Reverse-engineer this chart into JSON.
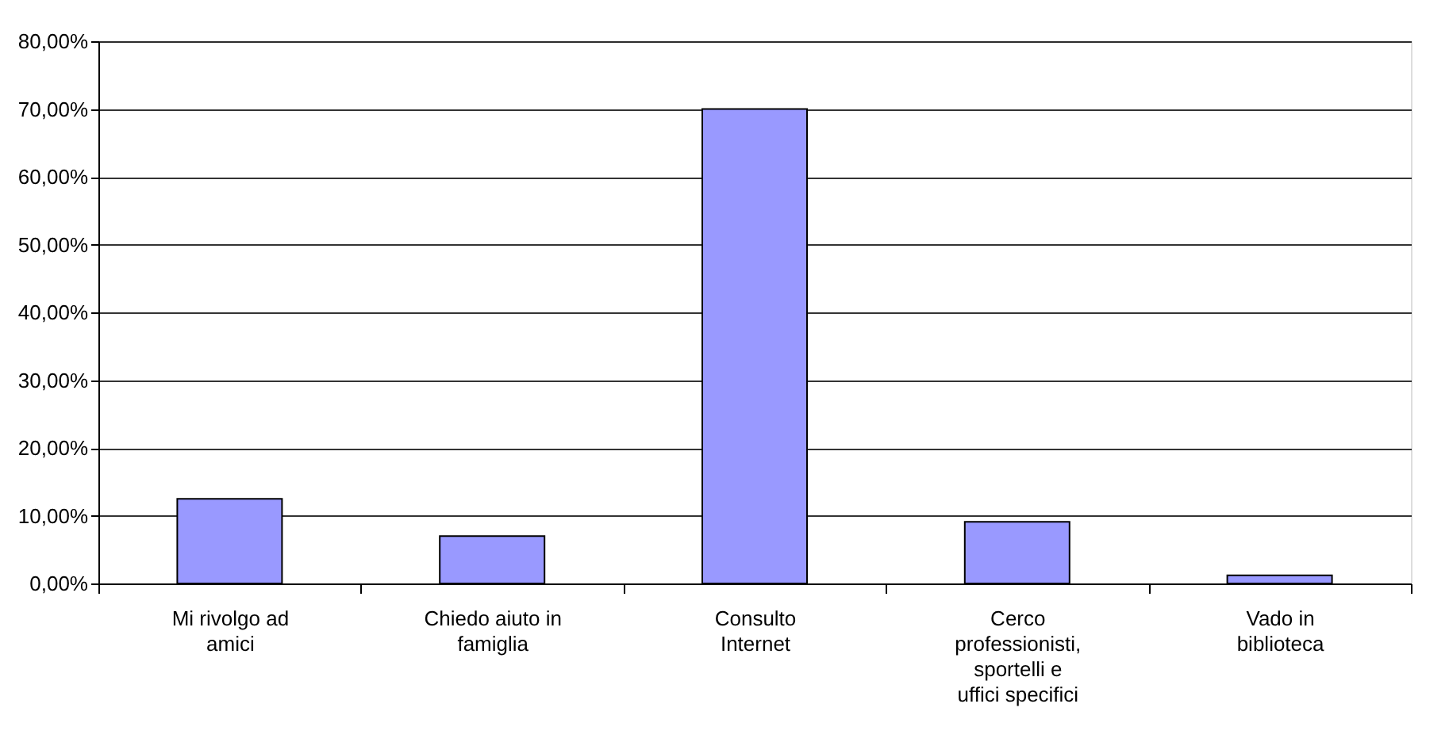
{
  "chart_data": {
    "type": "bar",
    "categories": [
      "Mi rivolgo ad amici",
      "Chiedo aiuto in famiglia",
      "Consulto Internet",
      "Cerco professionisti, sportelli e uffici specifici",
      "Vado in biblioteca"
    ],
    "values": [
      12.5,
      7.0,
      70.0,
      9.1,
      1.2
    ],
    "color": "#9999ff",
    "ylim": [
      0,
      80
    ],
    "yticks": [
      {
        "value": 0,
        "label": "0,00%"
      },
      {
        "value": 10,
        "label": "10,00%"
      },
      {
        "value": 20,
        "label": "20,00%"
      },
      {
        "value": 30,
        "label": "30,00%"
      },
      {
        "value": 40,
        "label": "40,00%"
      },
      {
        "value": 50,
        "label": "50,00%"
      },
      {
        "value": 60,
        "label": "60,00%"
      },
      {
        "value": 70,
        "label": "70,00%"
      },
      {
        "value": 80,
        "label": "80,00%"
      }
    ],
    "grid": "y"
  }
}
